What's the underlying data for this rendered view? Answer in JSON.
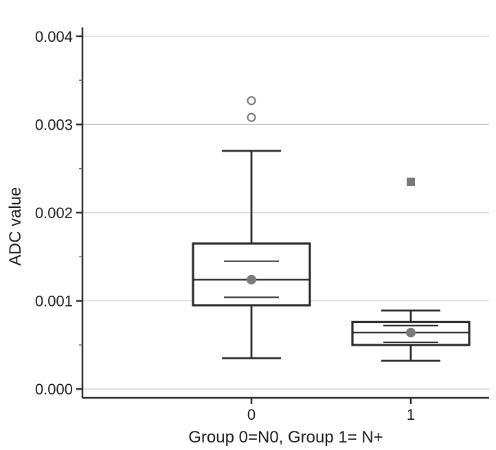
{
  "chart_data": {
    "type": "box",
    "xlabel": "Group 0=N0, Group 1= N+",
    "ylabel": "ADC value",
    "ylim": [
      -0.0001,
      0.0041
    ],
    "yticks": [
      "0.000",
      "0.001",
      "0.002",
      "0.003",
      "0.004"
    ],
    "ytick_values": [
      0.0,
      0.001,
      0.002,
      0.003,
      0.004
    ],
    "grid": true,
    "categories": [
      "0",
      "1"
    ],
    "groups": [
      {
        "category": "0",
        "whisker_low": 0.00035,
        "q1": 0.00095,
        "median": 0.00124,
        "q3": 0.00165,
        "whisker_high": 0.0027,
        "mean": 0.00124,
        "ci_low": 0.00104,
        "ci_high": 0.00145,
        "outliers": [
          0.00308,
          0.00327
        ],
        "outlier_marker": "open-circle"
      },
      {
        "category": "1",
        "whisker_low": 0.00032,
        "q1": 0.0005,
        "median": 0.00064,
        "q3": 0.00076,
        "whisker_high": 0.00089,
        "mean": 0.00064,
        "ci_low": 0.00053,
        "ci_high": 0.00072,
        "outliers": [
          0.00235
        ],
        "outlier_marker": "filled-square"
      }
    ],
    "colors": {
      "box": "#2b2b2b",
      "grid": "#c8c8c8",
      "marker": "#7a7a7a"
    }
  }
}
